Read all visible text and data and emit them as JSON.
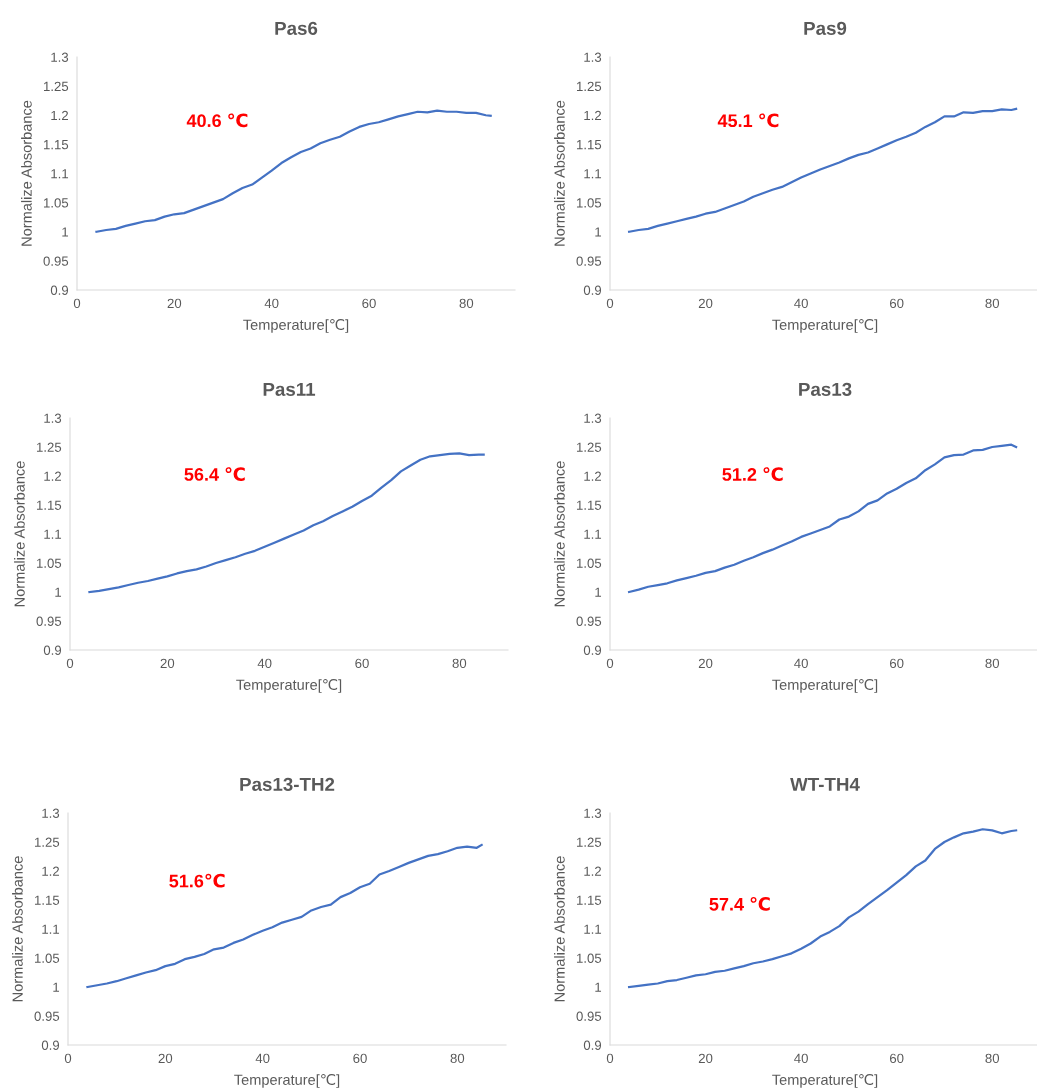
{
  "chart_data": [
    {
      "type": "line",
      "title": "Pas6",
      "xlabel": "Temperature[℃]",
      "ylabel": "Normalize Absorbance",
      "annotations": [
        "40.6 ℃"
      ],
      "xlim": [
        0,
        90
      ],
      "xticks": [
        0,
        20,
        40,
        60,
        80
      ],
      "ylim": [
        0.9,
        1.3
      ],
      "yticks": [
        0.9,
        0.95,
        1,
        1.05,
        1.1,
        1.15,
        1.2,
        1.25,
        1.3
      ],
      "grid": false,
      "x": [
        4,
        6,
        8,
        10,
        12,
        14,
        16,
        18,
        20,
        22,
        24,
        26,
        28,
        30,
        32,
        34,
        36,
        38,
        40,
        42,
        44,
        46,
        48,
        50,
        52,
        54,
        56,
        58,
        60,
        62,
        64,
        66,
        68,
        70,
        72,
        74,
        76,
        78,
        80,
        82,
        84,
        85
      ],
      "series": [
        {
          "color": "#4472c4",
          "values": [
            1.0,
            1.003,
            1.005,
            1.01,
            1.014,
            1.018,
            1.02,
            1.026,
            1.03,
            1.032,
            1.038,
            1.044,
            1.05,
            1.056,
            1.066,
            1.075,
            1.081,
            1.093,
            1.105,
            1.118,
            1.128,
            1.137,
            1.143,
            1.152,
            1.158,
            1.163,
            1.172,
            1.18,
            1.185,
            1.188,
            1.193,
            1.198,
            1.202,
            1.206,
            1.205,
            1.208,
            1.206,
            1.206,
            1.204,
            1.204,
            1.2,
            1.199
          ]
        }
      ]
    },
    {
      "type": "line",
      "title": "Pas9",
      "xlabel": "Temperature[℃]",
      "ylabel": "Normalize Absorbance",
      "annotations": [
        "45.1 ℃"
      ],
      "xlim": [
        0,
        90
      ],
      "xticks": [
        0,
        20,
        40,
        60,
        80
      ],
      "ylim": [
        0.9,
        1.3
      ],
      "yticks": [
        0.9,
        0.95,
        1,
        1.05,
        1.1,
        1.15,
        1.2,
        1.25,
        1.3
      ],
      "grid": false,
      "x": [
        4,
        6,
        8,
        10,
        12,
        14,
        16,
        18,
        20,
        22,
        24,
        26,
        28,
        30,
        32,
        34,
        36,
        38,
        40,
        42,
        44,
        46,
        48,
        50,
        52,
        54,
        56,
        58,
        60,
        62,
        64,
        66,
        68,
        70,
        72,
        74,
        76,
        78,
        80,
        82,
        84,
        85
      ],
      "series": [
        {
          "color": "#4472c4",
          "values": [
            1.0,
            1.003,
            1.005,
            1.01,
            1.014,
            1.018,
            1.022,
            1.026,
            1.031,
            1.034,
            1.04,
            1.046,
            1.052,
            1.06,
            1.066,
            1.072,
            1.077,
            1.085,
            1.093,
            1.1,
            1.107,
            1.113,
            1.119,
            1.126,
            1.132,
            1.136,
            1.143,
            1.15,
            1.157,
            1.163,
            1.17,
            1.18,
            1.188,
            1.198,
            1.198,
            1.205,
            1.204,
            1.207,
            1.207,
            1.21,
            1.209,
            1.211
          ]
        }
      ]
    },
    {
      "type": "line",
      "title": "Pas11",
      "xlabel": "Temperature[℃]",
      "ylabel": "Normalize Absorbance",
      "annotations": [
        "56.4 ℃"
      ],
      "xlim": [
        0,
        90
      ],
      "xticks": [
        0,
        20,
        40,
        60,
        80
      ],
      "ylim": [
        0.9,
        1.3
      ],
      "yticks": [
        0.9,
        0.95,
        1,
        1.05,
        1.1,
        1.15,
        1.2,
        1.25,
        1.3
      ],
      "grid": false,
      "x": [
        4,
        6,
        8,
        10,
        12,
        14,
        16,
        18,
        20,
        22,
        24,
        26,
        28,
        30,
        32,
        34,
        36,
        38,
        40,
        42,
        44,
        46,
        48,
        50,
        52,
        54,
        56,
        58,
        60,
        62,
        64,
        66,
        68,
        70,
        72,
        74,
        76,
        78,
        80,
        82,
        84,
        85
      ],
      "series": [
        {
          "color": "#4472c4",
          "values": [
            1.0,
            1.002,
            1.005,
            1.008,
            1.012,
            1.016,
            1.019,
            1.023,
            1.027,
            1.032,
            1.036,
            1.039,
            1.044,
            1.05,
            1.055,
            1.06,
            1.066,
            1.071,
            1.078,
            1.085,
            1.092,
            1.099,
            1.106,
            1.115,
            1.122,
            1.131,
            1.139,
            1.147,
            1.157,
            1.166,
            1.18,
            1.193,
            1.208,
            1.218,
            1.228,
            1.234,
            1.236,
            1.238,
            1.239,
            1.236,
            1.237,
            1.237
          ]
        }
      ]
    },
    {
      "type": "line",
      "title": "Pas13",
      "xlabel": "Temperature[℃]",
      "ylabel": "Normalize Absorbance",
      "annotations": [
        "51.2 ℃"
      ],
      "xlim": [
        0,
        90
      ],
      "xticks": [
        0,
        20,
        40,
        60,
        80
      ],
      "ylim": [
        0.9,
        1.3
      ],
      "yticks": [
        0.9,
        0.95,
        1,
        1.05,
        1.1,
        1.15,
        1.2,
        1.25,
        1.3
      ],
      "grid": false,
      "x": [
        4,
        6,
        8,
        10,
        12,
        14,
        16,
        18,
        20,
        22,
        24,
        26,
        28,
        30,
        32,
        34,
        36,
        38,
        40,
        42,
        44,
        46,
        48,
        50,
        52,
        54,
        56,
        58,
        60,
        62,
        64,
        66,
        68,
        70,
        72,
        74,
        76,
        78,
        80,
        82,
        84,
        85
      ],
      "series": [
        {
          "color": "#4472c4",
          "values": [
            1.0,
            1.004,
            1.009,
            1.012,
            1.015,
            1.02,
            1.024,
            1.028,
            1.033,
            1.036,
            1.042,
            1.047,
            1.054,
            1.06,
            1.067,
            1.073,
            1.08,
            1.087,
            1.095,
            1.101,
            1.107,
            1.113,
            1.125,
            1.13,
            1.139,
            1.152,
            1.158,
            1.17,
            1.178,
            1.188,
            1.196,
            1.21,
            1.22,
            1.232,
            1.236,
            1.237,
            1.244,
            1.245,
            1.25,
            1.252,
            1.254,
            1.25
          ]
        }
      ]
    },
    {
      "type": "line",
      "title": "Pas13-TH2",
      "xlabel": "Temperature[℃]",
      "ylabel": "Normalize Absorbance",
      "annotations": [
        "51.6℃"
      ],
      "xlim": [
        0,
        90
      ],
      "xticks": [
        0,
        20,
        40,
        60,
        80
      ],
      "ylim": [
        0.9,
        1.3
      ],
      "yticks": [
        0.9,
        0.95,
        1,
        1.05,
        1.1,
        1.15,
        1.2,
        1.25,
        1.3
      ],
      "grid": false,
      "x": [
        4,
        6,
        8,
        10,
        12,
        14,
        16,
        18,
        20,
        22,
        24,
        26,
        28,
        30,
        32,
        34,
        36,
        38,
        40,
        42,
        44,
        46,
        48,
        50,
        52,
        54,
        56,
        58,
        60,
        62,
        64,
        66,
        68,
        70,
        72,
        74,
        76,
        78,
        80,
        82,
        84,
        85
      ],
      "series": [
        {
          "color": "#4472c4",
          "values": [
            1.0,
            1.003,
            1.006,
            1.01,
            1.015,
            1.02,
            1.025,
            1.029,
            1.036,
            1.04,
            1.048,
            1.052,
            1.057,
            1.065,
            1.068,
            1.076,
            1.082,
            1.09,
            1.097,
            1.103,
            1.111,
            1.116,
            1.121,
            1.132,
            1.138,
            1.142,
            1.155,
            1.162,
            1.172,
            1.178,
            1.194,
            1.2,
            1.207,
            1.214,
            1.22,
            1.226,
            1.229,
            1.234,
            1.24,
            1.242,
            1.24,
            1.245
          ]
        }
      ]
    },
    {
      "type": "line",
      "title": "WT-TH4",
      "xlabel": "Temperature[℃]",
      "ylabel": "Normalize Absorbance",
      "annotations": [
        "57.4 ℃"
      ],
      "xlim": [
        0,
        90
      ],
      "xticks": [
        0,
        20,
        40,
        60,
        80
      ],
      "ylim": [
        0.9,
        1.3
      ],
      "yticks": [
        0.9,
        0.95,
        1,
        1.05,
        1.1,
        1.15,
        1.2,
        1.25,
        1.3
      ],
      "grid": false,
      "x": [
        4,
        6,
        8,
        10,
        12,
        14,
        16,
        18,
        20,
        22,
        24,
        26,
        28,
        30,
        32,
        34,
        36,
        38,
        40,
        42,
        44,
        46,
        48,
        50,
        52,
        54,
        56,
        58,
        60,
        62,
        64,
        66,
        68,
        70,
        72,
        74,
        76,
        78,
        80,
        82,
        84,
        85
      ],
      "series": [
        {
          "color": "#4472c4",
          "values": [
            1.0,
            1.002,
            1.004,
            1.006,
            1.01,
            1.012,
            1.016,
            1.02,
            1.022,
            1.026,
            1.028,
            1.032,
            1.036,
            1.041,
            1.044,
            1.048,
            1.053,
            1.058,
            1.066,
            1.075,
            1.087,
            1.095,
            1.105,
            1.12,
            1.13,
            1.143,
            1.155,
            1.167,
            1.18,
            1.193,
            1.208,
            1.218,
            1.238,
            1.25,
            1.258,
            1.265,
            1.268,
            1.272,
            1.27,
            1.265,
            1.269,
            1.27
          ]
        }
      ]
    }
  ]
}
